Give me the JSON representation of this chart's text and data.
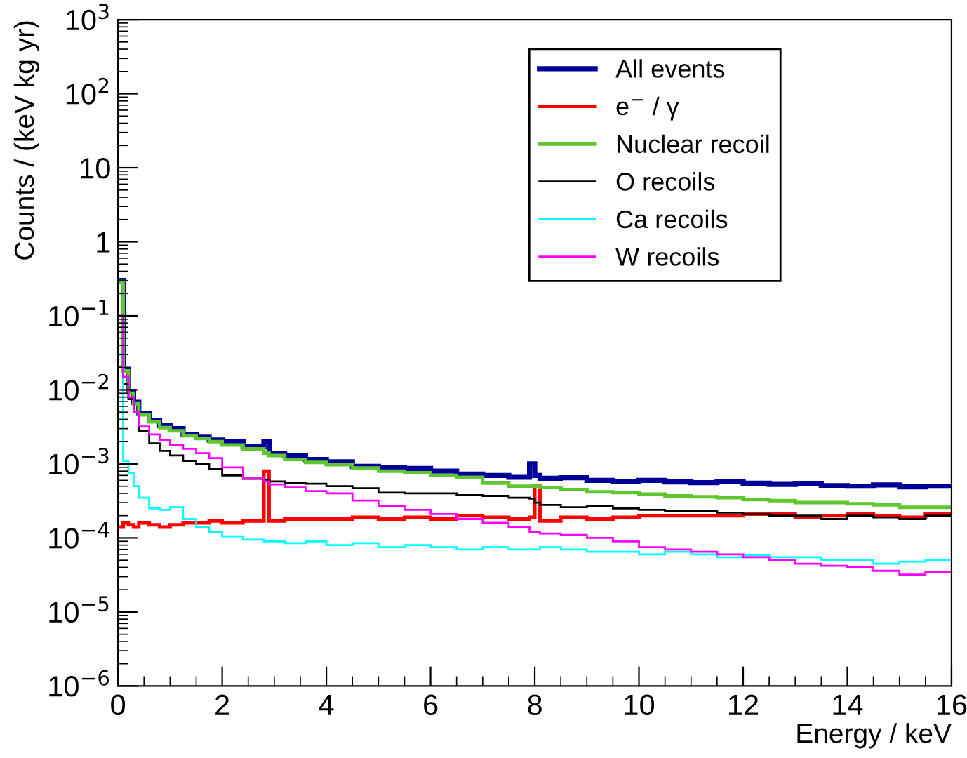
{
  "chart_data": {
    "type": "histogram",
    "xlabel": "Energy / keV",
    "ylabel": "Counts / (keV kg yr)",
    "bins": [
      0,
      0.1,
      0.2,
      0.3,
      0.4,
      0.6,
      0.8,
      1.0,
      1.25,
      1.5,
      1.75,
      2.0,
      2.4,
      2.8,
      2.9,
      3.2,
      3.6,
      4.0,
      4.5,
      5,
      5.5,
      6,
      6.5,
      7,
      7.5,
      7.9,
      8.0,
      8.1,
      8.5,
      9,
      9.5,
      10,
      10.5,
      11,
      11.5,
      12,
      12.5,
      13,
      13.5,
      14,
      14.5,
      15,
      15.5,
      16
    ],
    "series": [
      {
        "name": "All events",
        "color": "#000099",
        "values": [
          0.3,
          0.019,
          0.0095,
          0.0068,
          0.0048,
          0.0039,
          0.0033,
          0.003,
          0.0025,
          0.0023,
          0.0021,
          0.002,
          0.0017,
          0.002,
          0.0014,
          0.0013,
          0.00115,
          0.00107,
          0.00093,
          0.0009,
          0.00087,
          0.0008,
          0.00073,
          0.0007,
          0.00066,
          0.001,
          0.0007,
          0.00064,
          0.00065,
          0.0006,
          0.00058,
          0.0006,
          0.00057,
          0.00056,
          0.00058,
          0.00055,
          0.00053,
          0.00054,
          0.00051,
          0.0005,
          0.00052,
          0.00049,
          0.0005
        ]
      },
      {
        "name": "e$^{−}$ / γ",
        "color": "#ff0000",
        "values": [
          0.00014,
          0.00016,
          0.00015,
          0.00014,
          0.00016,
          0.00015,
          0.00014,
          0.00015,
          0.00016,
          0.00016,
          0.00017,
          0.00016,
          0.00017,
          0.0008,
          0.00017,
          0.00018,
          0.00018,
          0.00018,
          0.00019,
          0.00018,
          0.00019,
          0.00018,
          0.0002,
          0.00019,
          0.00018,
          0.00019,
          0.0005,
          0.00017,
          0.00019,
          0.00018,
          0.00019,
          0.0002,
          0.0002,
          0.0002,
          0.0002,
          0.00021,
          0.00021,
          0.00019,
          0.0002,
          0.00021,
          0.0002,
          0.00019,
          0.00021
        ]
      },
      {
        "name": "Nuclear recoil",
        "color": "#5fc62f",
        "values": [
          0.29,
          0.018,
          0.009,
          0.0065,
          0.0046,
          0.0037,
          0.0031,
          0.0028,
          0.0024,
          0.0022,
          0.002,
          0.0018,
          0.0016,
          0.0014,
          0.0013,
          0.00115,
          0.00105,
          0.00098,
          0.00088,
          0.0008,
          0.00076,
          0.0007,
          0.00066,
          0.00055,
          0.0005,
          0.0005,
          0.0005,
          0.00048,
          0.00045,
          0.00042,
          0.00041,
          0.00039,
          0.00037,
          0.00036,
          0.00035,
          0.00033,
          0.00032,
          0.0003,
          0.0003,
          0.00029,
          0.00028,
          0.00026,
          0.00026
        ]
      },
      {
        "name": "O recoils",
        "color": "#000000",
        "values": [
          0.02,
          0.012,
          0.0075,
          0.005,
          0.0028,
          0.0019,
          0.0015,
          0.0013,
          0.0011,
          0.001,
          0.00085,
          0.0007,
          0.00063,
          0.0006,
          0.00058,
          0.00055,
          0.00054,
          0.0005,
          0.00047,
          0.00041,
          0.0004,
          0.0004,
          0.00038,
          0.00037,
          0.00035,
          0.00034,
          0.0003,
          0.00028,
          0.00026,
          0.00027,
          0.00025,
          0.00024,
          0.00023,
          0.00023,
          0.00022,
          0.00021,
          0.0002,
          0.0002,
          0.00018,
          0.0002,
          0.00019,
          0.00018,
          0.0002
        ]
      },
      {
        "name": "Ca recoils",
        "color": "#00ffff",
        "values": [
          0.03,
          0.0011,
          0.00075,
          0.0005,
          0.00035,
          0.00025,
          0.00024,
          0.00026,
          0.00018,
          0.00014,
          0.00012,
          0.000105,
          9.5e-05,
          9e-05,
          9e-05,
          8.5e-05,
          9e-05,
          8e-05,
          8.5e-05,
          7.5e-05,
          8e-05,
          7.5e-05,
          7e-05,
          7.5e-05,
          7e-05,
          7e-05,
          7e-05,
          7.5e-05,
          7e-05,
          6.5e-05,
          6.5e-05,
          6e-05,
          6.5e-05,
          6e-05,
          5.5e-05,
          5.8e-05,
          5.5e-05,
          5.5e-05,
          5e-05,
          5e-05,
          4.5e-05,
          4.8e-05,
          5e-05
        ]
      },
      {
        "name": "W recoils",
        "color": "#ff00ff",
        "values": [
          0.1,
          0.015,
          0.008,
          0.005,
          0.0032,
          0.0025,
          0.0021,
          0.0018,
          0.0016,
          0.0014,
          0.0012,
          0.0009,
          0.00065,
          0.00058,
          0.00053,
          0.00048,
          0.00043,
          0.0004,
          0.00032,
          0.00027,
          0.00024,
          0.00021,
          0.00018,
          0.00016,
          0.00014,
          0.00012,
          0.00012,
          0.000115,
          0.00011,
          0.0001,
          9e-05,
          7.5e-05,
          7e-05,
          6.5e-05,
          6e-05,
          5.5e-05,
          5e-05,
          4.5e-05,
          4.2e-05,
          4e-05,
          3.6e-05,
          3.2e-05,
          3.5e-05
        ]
      }
    ],
    "log": "y",
    "xlim": [
      0,
      16
    ],
    "xticks": [
      0,
      2,
      4,
      6,
      8,
      10,
      12,
      14,
      16
    ],
    "ylim": [
      1e-06,
      1000
    ],
    "yticks": [
      {
        "value": 1e-06,
        "label": "10$^{−6}$"
      },
      {
        "value": 1e-05,
        "label": "10$^{−5}$"
      },
      {
        "value": 0.0001,
        "label": "10$^{−4}$"
      },
      {
        "value": 0.001,
        "label": "10$^{−3}$"
      },
      {
        "value": 0.01,
        "label": "10$^{−2}$"
      },
      {
        "value": 0.1,
        "label": "10$^{−1}$"
      },
      {
        "value": 1,
        "label": "1"
      },
      {
        "value": 10,
        "label": "10"
      },
      {
        "value": 100,
        "label": "10$^{2}$"
      },
      {
        "value": 1000,
        "label": "10$^{3}$"
      }
    ],
    "grid": false,
    "legend": "top right"
  }
}
